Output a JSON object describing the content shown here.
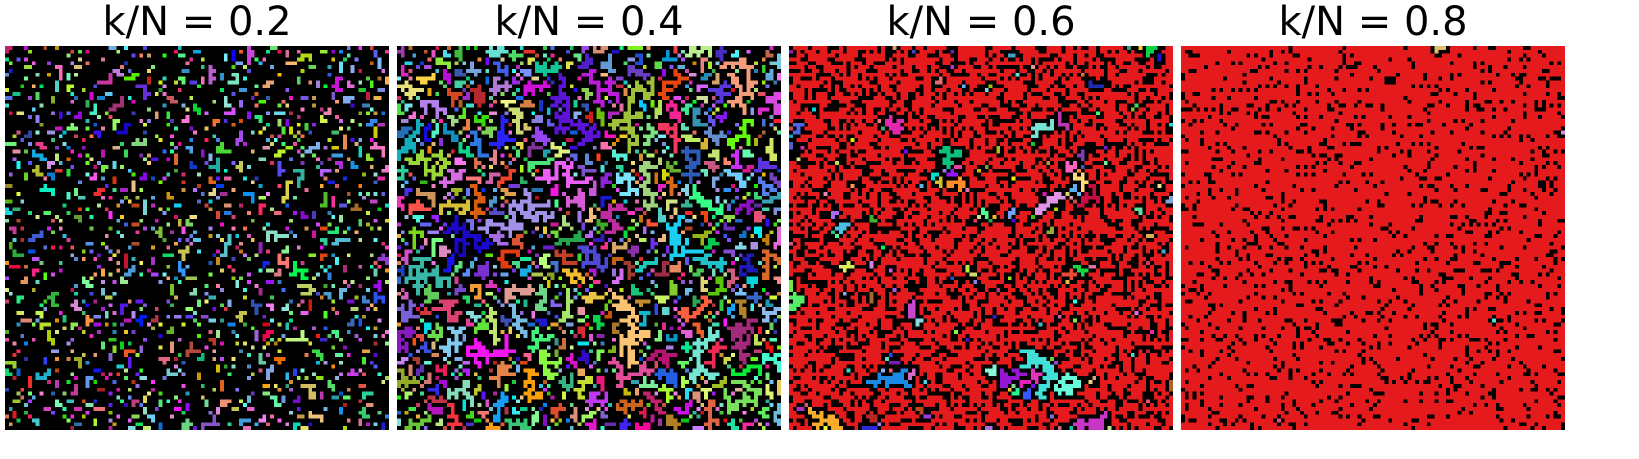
{
  "panels": [
    {
      "title": "k/N = 0.2"
    },
    {
      "title": "k/N = 0.4"
    },
    {
      "title": "k/N = 0.6"
    },
    {
      "title": "k/N = 0.8"
    }
  ]
}
